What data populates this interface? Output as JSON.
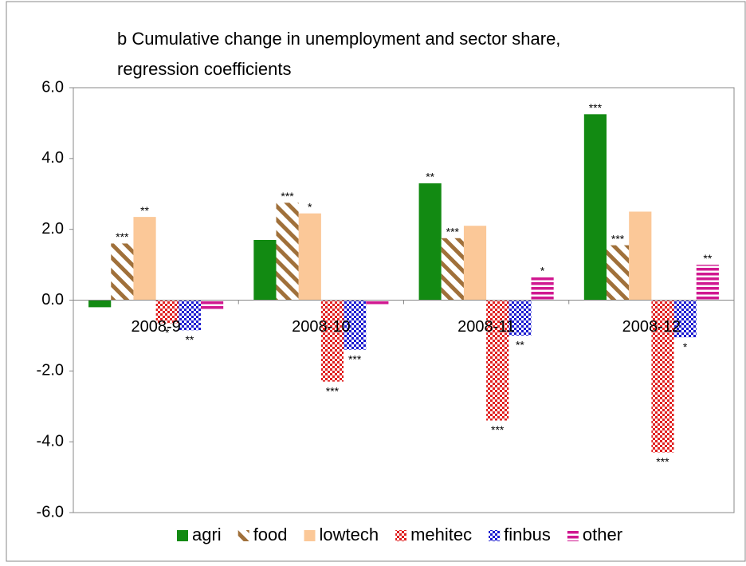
{
  "chart_data": {
    "type": "bar",
    "title": "b Cumulative change in unemployment and sector share,",
    "subtitle": "regression coefficients",
    "categories": [
      "2008-9",
      "2008-10",
      "2008-11",
      "2008-12"
    ],
    "series": [
      {
        "name": "agri",
        "color": "#128a12",
        "pattern": "solid",
        "values": [
          -0.2,
          1.7,
          3.3,
          5.25
        ],
        "stars": [
          null,
          null,
          "**",
          "***"
        ]
      },
      {
        "name": "food",
        "color": "#a0703a",
        "pattern": "diagonal",
        "values": [
          1.6,
          2.75,
          1.75,
          1.55
        ],
        "stars": [
          "***",
          "***",
          "***",
          "***"
        ]
      },
      {
        "name": "lowtech",
        "color": "#fbc898",
        "pattern": "solid",
        "values": [
          2.35,
          2.45,
          2.1,
          2.5
        ],
        "stars": [
          "**",
          "*",
          null,
          null
        ]
      },
      {
        "name": "mehitec",
        "color": "#e02020",
        "pattern": "dots",
        "values": [
          -0.65,
          -2.3,
          -3.4,
          -4.3
        ],
        "stars": [
          "*",
          "***",
          "***",
          "***"
        ]
      },
      {
        "name": "finbus",
        "color": "#1a1ad0",
        "pattern": "checker",
        "values": [
          -0.85,
          -1.4,
          -1.0,
          -1.05
        ],
        "stars": [
          "**",
          "***",
          "**",
          "*"
        ]
      },
      {
        "name": "other",
        "color": "#d01890",
        "pattern": "horizontal",
        "values": [
          -0.3,
          -0.15,
          0.65,
          1.0
        ],
        "stars": [
          null,
          null,
          "*",
          "**"
        ]
      }
    ],
    "ylim": [
      -6,
      6
    ],
    "yticks": [
      {
        "value": -6,
        "label": "-6.0"
      },
      {
        "value": -4,
        "label": "-4.0"
      },
      {
        "value": -2,
        "label": "-2.0"
      },
      {
        "value": 0,
        "label": "0.0"
      },
      {
        "value": 2,
        "label": "2.0"
      },
      {
        "value": 4,
        "label": "4.0"
      },
      {
        "value": 6,
        "label": "6.0"
      }
    ],
    "legend": "bottom"
  }
}
